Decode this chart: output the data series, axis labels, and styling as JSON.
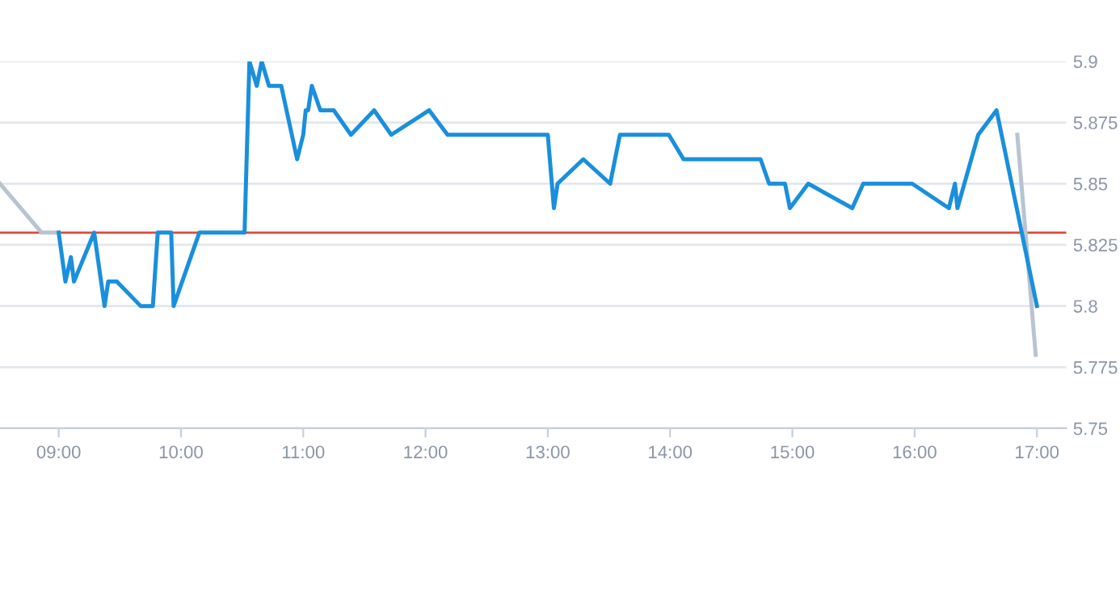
{
  "chart_data": {
    "type": "line",
    "series": [
      {
        "color": "#b8c4d2",
        "x": [
          8.52,
          8.86,
          9.0,
          12.0,
          16.84,
          16.99
        ],
        "values": [
          5.85,
          5.83,
          5.83,
          null,
          5.87,
          5.78
        ]
      },
      {
        "color": "#1a8fdd",
        "x": [
          9.0,
          9.055,
          9.1,
          9.125,
          9.29,
          9.375,
          9.405,
          9.475,
          9.67,
          9.77,
          9.81,
          9.92,
          9.94,
          10.15,
          10.52,
          10.56,
          10.62,
          10.66,
          10.72,
          10.82,
          10.95,
          11.0,
          11.02,
          11.04,
          11.07,
          11.14,
          11.25,
          11.39,
          11.58,
          11.72,
          12.03,
          12.18,
          13.0,
          13.05,
          13.08,
          13.29,
          13.51,
          13.59,
          13.99,
          14.11,
          14.74,
          14.81,
          14.94,
          14.98,
          15.13,
          15.49,
          15.58,
          15.98,
          16.28,
          16.33,
          16.35,
          16.52,
          16.67,
          17.0
        ],
        "values": [
          5.83,
          5.81,
          5.82,
          5.81,
          5.83,
          5.8,
          5.81,
          5.81,
          5.8,
          5.8,
          5.83,
          5.83,
          5.8,
          5.83,
          5.83,
          5.9,
          5.89,
          5.9,
          5.89,
          5.89,
          5.86,
          5.87,
          5.88,
          5.88,
          5.89,
          5.88,
          5.88,
          5.87,
          5.88,
          5.87,
          5.88,
          5.87,
          5.87,
          5.84,
          5.85,
          5.86,
          5.85,
          5.87,
          5.87,
          5.86,
          5.86,
          5.85,
          5.85,
          5.84,
          5.85,
          5.84,
          5.85,
          5.85,
          5.84,
          5.85,
          5.84,
          5.87,
          5.88,
          5.8
        ]
      }
    ],
    "xlim": [
      8.52,
      17.24
    ],
    "xticks": [
      {
        "value": 9,
        "label": "09:00"
      },
      {
        "value": 10,
        "label": "10:00"
      },
      {
        "value": 11,
        "label": "11:00"
      },
      {
        "value": 12,
        "label": "12:00"
      },
      {
        "value": 13,
        "label": "13:00"
      },
      {
        "value": 14,
        "label": "14:00"
      },
      {
        "value": 15,
        "label": "15:00"
      },
      {
        "value": 16,
        "label": "16:00"
      },
      {
        "value": 17,
        "label": "17:00"
      }
    ],
    "ylim": [
      5.75,
      5.9
    ],
    "yticks": [
      5.75,
      5.775,
      5.8,
      5.825,
      5.85,
      5.875,
      5.9
    ],
    "ref_lines": [
      {
        "axis": "y",
        "value": 5.83,
        "color": "#d94c3d"
      }
    ],
    "grid": "y",
    "legend": false,
    "marker": "none",
    "line_style": "solid"
  }
}
